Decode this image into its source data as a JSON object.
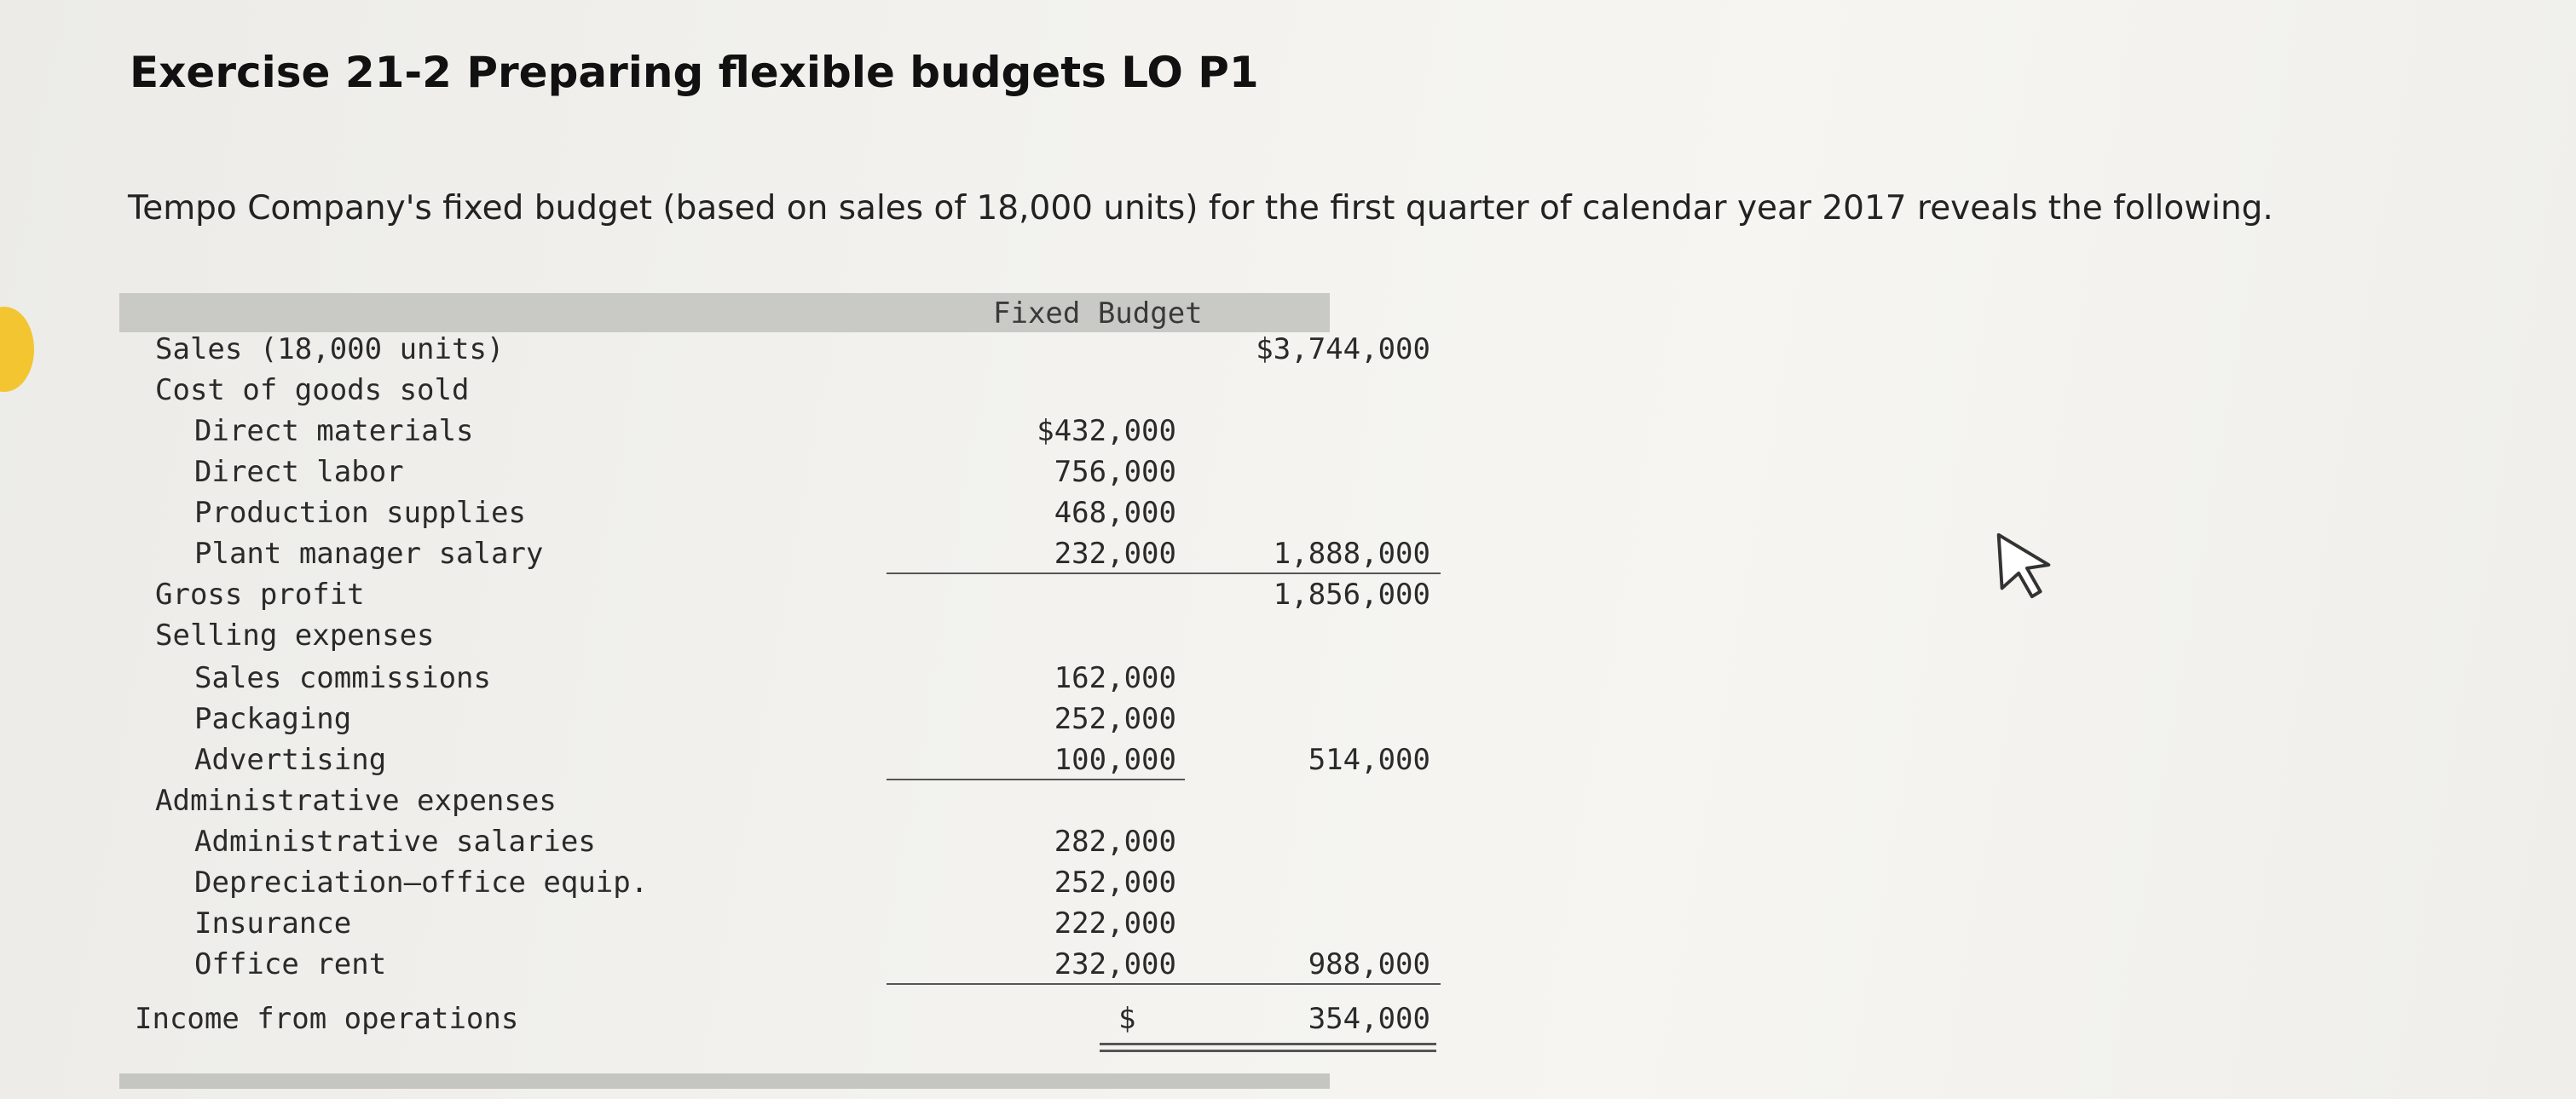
{
  "title": "Exercise 21-2 Preparing flexible budgets LO P1",
  "intro": "Tempo Company's fixed budget (based on sales of 18,000 units) for the first quarter of calendar year 2017 reveals the following.",
  "table": {
    "header": "Fixed Budget",
    "sales": {
      "label": "Sales (18,000 units)",
      "total": "$3,744,000"
    },
    "cogs": {
      "label": "Cost of goods sold",
      "items": [
        {
          "label": "Direct materials",
          "amount": "$432,000"
        },
        {
          "label": "Direct labor",
          "amount": "756,000"
        },
        {
          "label": "Production supplies",
          "amount": "468,000"
        },
        {
          "label": "Plant manager salary",
          "amount": "232,000"
        }
      ],
      "total": "1,888,000"
    },
    "gross_profit": {
      "label": "Gross profit",
      "total": "1,856,000"
    },
    "selling": {
      "label": "Selling expenses",
      "items": [
        {
          "label": "Sales commissions",
          "amount": "162,000"
        },
        {
          "label": "Packaging",
          "amount": "252,000"
        },
        {
          "label": "Advertising",
          "amount": "100,000"
        }
      ],
      "total": "514,000"
    },
    "admin": {
      "label": "Administrative expenses",
      "items": [
        {
          "label": "Administrative salaries",
          "amount": "282,000"
        },
        {
          "label": "Depreciation—office equip.",
          "amount": "252,000"
        },
        {
          "label": "Insurance",
          "amount": "222,000"
        },
        {
          "label": "Office rent",
          "amount": "232,000"
        }
      ],
      "total": "988,000"
    },
    "income": {
      "label": "Income from operations",
      "currency": "$",
      "total": "354,000"
    }
  }
}
